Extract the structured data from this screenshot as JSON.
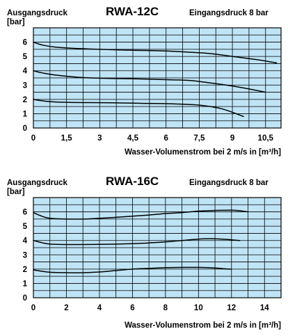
{
  "colors": {
    "plot_background": "#bfe4f6",
    "grid": "#000000",
    "curve": "#000000"
  },
  "chart_data": [
    {
      "type": "line",
      "title": "RWA-12C",
      "ylabel_left": "Ausgangsdruck",
      "yunit": "[bar]",
      "annotation_right": "Eingangsdruck 8 bar",
      "xlabel": "Wasser-Volumenstrom bei 2 m/s in [m³/h]",
      "xlim": [
        0,
        11.2
      ],
      "ylim": [
        0,
        7
      ],
      "x_ticks": [
        0,
        1.5,
        3,
        4.5,
        6,
        7.5,
        9,
        10.5
      ],
      "x_tick_labels": [
        "0",
        "1,5",
        "3",
        "4,5",
        "6",
        "7,5",
        "9",
        "10,5"
      ],
      "y_ticks": [
        0,
        1,
        2,
        3,
        4,
        5,
        6
      ],
      "y_tick_labels": [
        "0",
        "1",
        "2",
        "3",
        "4",
        "5",
        "6"
      ],
      "grid": true,
      "series": [
        {
          "x": [
            0,
            0.4,
            1,
            2,
            3,
            4,
            5,
            6,
            7,
            8,
            9,
            10,
            11
          ],
          "y": [
            6.0,
            5.8,
            5.65,
            5.55,
            5.5,
            5.45,
            5.42,
            5.38,
            5.3,
            5.2,
            5.0,
            4.8,
            4.55
          ]
        },
        {
          "x": [
            0,
            0.4,
            1,
            2,
            3,
            4,
            5,
            6,
            7,
            7.5,
            8.5,
            9.5,
            10.5
          ],
          "y": [
            4.0,
            3.85,
            3.7,
            3.55,
            3.48,
            3.45,
            3.42,
            3.38,
            3.33,
            3.25,
            3.05,
            2.8,
            2.5
          ]
        },
        {
          "x": [
            0,
            0.5,
            1,
            2,
            3,
            4,
            5,
            6,
            7,
            7.5,
            8,
            8.5,
            9,
            9.5
          ],
          "y": [
            2.0,
            1.88,
            1.82,
            1.78,
            1.77,
            1.75,
            1.72,
            1.7,
            1.65,
            1.6,
            1.5,
            1.35,
            1.1,
            0.8
          ]
        }
      ]
    },
    {
      "type": "line",
      "title": "RWA-16C",
      "ylabel_left": "Ausgangsdruck",
      "yunit": "[bar]",
      "annotation_right": "Eingangsdruck 8 bar",
      "xlabel": "Wasser-Volumenstrom bei 2 m/s in [m³/h]",
      "xlim": [
        0,
        15
      ],
      "ylim": [
        0,
        7
      ],
      "x_ticks": [
        0,
        2,
        4,
        6,
        8,
        10,
        12,
        14
      ],
      "x_tick_labels": [
        "0",
        "2",
        "4",
        "6",
        "8",
        "10",
        "12",
        "14"
      ],
      "y_ticks": [
        0,
        1,
        2,
        3,
        4,
        5,
        6
      ],
      "y_tick_labels": [
        "0",
        "1",
        "2",
        "3",
        "4",
        "5",
        "6"
      ],
      "grid": true,
      "series": [
        {
          "x": [
            0,
            0.5,
            1,
            2,
            3,
            4,
            5,
            6,
            7,
            8,
            9,
            10,
            11,
            12,
            12.5,
            13
          ],
          "y": [
            5.95,
            5.7,
            5.55,
            5.5,
            5.5,
            5.55,
            5.62,
            5.7,
            5.78,
            5.88,
            5.95,
            6.05,
            6.1,
            6.12,
            6.08,
            6.0
          ]
        },
        {
          "x": [
            0,
            0.5,
            1,
            2,
            3,
            4,
            5,
            6,
            7,
            8,
            9,
            10,
            11,
            12,
            12.5
          ],
          "y": [
            4.0,
            3.85,
            3.75,
            3.72,
            3.72,
            3.73,
            3.75,
            3.78,
            3.83,
            3.9,
            4.0,
            4.1,
            4.12,
            4.05,
            4.0
          ]
        },
        {
          "x": [
            0,
            0.5,
            1,
            2,
            3,
            4,
            5,
            6,
            7,
            8,
            9,
            10,
            11,
            11.5,
            12
          ],
          "y": [
            1.95,
            1.85,
            1.78,
            1.75,
            1.75,
            1.8,
            1.9,
            2.0,
            2.05,
            2.1,
            2.12,
            2.12,
            2.08,
            2.03,
            2.0
          ]
        }
      ]
    }
  ]
}
